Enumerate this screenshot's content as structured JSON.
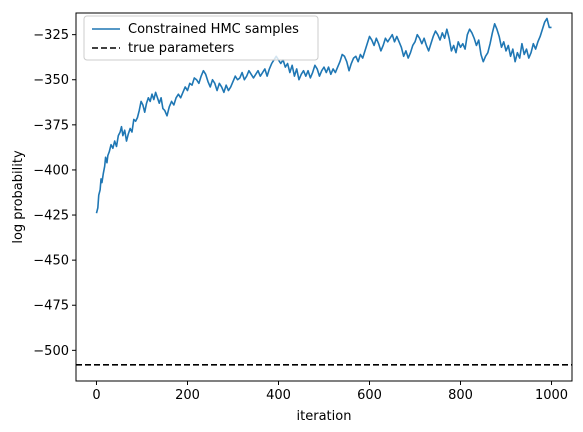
{
  "chart_data": {
    "type": "line",
    "xlabel": "iteration",
    "ylabel": "log probability",
    "xlim": [
      -45,
      1045
    ],
    "ylim": [
      -517,
      -313
    ],
    "x_ticks": [
      0,
      200,
      400,
      600,
      800,
      1000
    ],
    "y_ticks": [
      -500,
      -475,
      -450,
      -425,
      -400,
      -375,
      -350,
      -325
    ],
    "legend_position": "upper-left",
    "grid": false,
    "series": [
      {
        "name": "Constrained HMC samples",
        "style": "solid",
        "color": "#1f77b4",
        "points": [
          [
            0,
            -424
          ],
          [
            3,
            -421
          ],
          [
            5,
            -414
          ],
          [
            8,
            -411
          ],
          [
            10,
            -405
          ],
          [
            12,
            -407
          ],
          [
            15,
            -402
          ],
          [
            18,
            -398
          ],
          [
            20,
            -393
          ],
          [
            23,
            -396
          ],
          [
            25,
            -392
          ],
          [
            28,
            -390
          ],
          [
            32,
            -386
          ],
          [
            36,
            -388
          ],
          [
            40,
            -384
          ],
          [
            44,
            -387
          ],
          [
            48,
            -381
          ],
          [
            52,
            -379
          ],
          [
            55,
            -376
          ],
          [
            58,
            -381
          ],
          [
            62,
            -378
          ],
          [
            66,
            -384
          ],
          [
            70,
            -380
          ],
          [
            74,
            -377
          ],
          [
            78,
            -379
          ],
          [
            82,
            -372
          ],
          [
            86,
            -373
          ],
          [
            90,
            -371
          ],
          [
            94,
            -367
          ],
          [
            98,
            -362
          ],
          [
            102,
            -364
          ],
          [
            106,
            -368
          ],
          [
            110,
            -363
          ],
          [
            114,
            -360
          ],
          [
            118,
            -362
          ],
          [
            122,
            -358
          ],
          [
            126,
            -361
          ],
          [
            130,
            -357
          ],
          [
            134,
            -360
          ],
          [
            138,
            -363
          ],
          [
            142,
            -360
          ],
          [
            146,
            -366
          ],
          [
            150,
            -367
          ],
          [
            155,
            -370
          ],
          [
            160,
            -365
          ],
          [
            165,
            -362
          ],
          [
            170,
            -364
          ],
          [
            175,
            -360
          ],
          [
            180,
            -358
          ],
          [
            185,
            -360
          ],
          [
            190,
            -357
          ],
          [
            195,
            -354
          ],
          [
            200,
            -356
          ],
          [
            205,
            -352
          ],
          [
            210,
            -353
          ],
          [
            215,
            -349
          ],
          [
            220,
            -350
          ],
          [
            225,
            -352
          ],
          [
            230,
            -348
          ],
          [
            235,
            -345
          ],
          [
            240,
            -347
          ],
          [
            245,
            -351
          ],
          [
            250,
            -354
          ],
          [
            255,
            -350
          ],
          [
            260,
            -352
          ],
          [
            265,
            -356
          ],
          [
            270,
            -352
          ],
          [
            275,
            -354
          ],
          [
            280,
            -357
          ],
          [
            285,
            -353
          ],
          [
            290,
            -356
          ],
          [
            295,
            -354
          ],
          [
            300,
            -351
          ],
          [
            305,
            -348
          ],
          [
            310,
            -350
          ],
          [
            315,
            -349
          ],
          [
            320,
            -346
          ],
          [
            325,
            -350
          ],
          [
            330,
            -348
          ],
          [
            335,
            -345
          ],
          [
            340,
            -347
          ],
          [
            345,
            -349
          ],
          [
            350,
            -347
          ],
          [
            355,
            -345
          ],
          [
            360,
            -348
          ],
          [
            365,
            -346
          ],
          [
            370,
            -344
          ],
          [
            375,
            -348
          ],
          [
            380,
            -344
          ],
          [
            385,
            -341
          ],
          [
            390,
            -339
          ],
          [
            395,
            -337
          ],
          [
            400,
            -339
          ],
          [
            405,
            -341
          ],
          [
            410,
            -339
          ],
          [
            415,
            -343
          ],
          [
            420,
            -341
          ],
          [
            425,
            -346
          ],
          [
            430,
            -342
          ],
          [
            435,
            -348
          ],
          [
            440,
            -344
          ],
          [
            445,
            -350
          ],
          [
            450,
            -347
          ],
          [
            455,
            -345
          ],
          [
            460,
            -348
          ],
          [
            465,
            -345
          ],
          [
            470,
            -349
          ],
          [
            475,
            -346
          ],
          [
            480,
            -342
          ],
          [
            485,
            -344
          ],
          [
            490,
            -348
          ],
          [
            495,
            -345
          ],
          [
            500,
            -343
          ],
          [
            505,
            -346
          ],
          [
            510,
            -343
          ],
          [
            515,
            -347
          ],
          [
            520,
            -344
          ],
          [
            525,
            -346
          ],
          [
            530,
            -343
          ],
          [
            535,
            -340
          ],
          [
            540,
            -336
          ],
          [
            545,
            -337
          ],
          [
            550,
            -340
          ],
          [
            555,
            -345
          ],
          [
            560,
            -341
          ],
          [
            565,
            -338
          ],
          [
            570,
            -337
          ],
          [
            575,
            -340
          ],
          [
            580,
            -336
          ],
          [
            585,
            -338
          ],
          [
            590,
            -334
          ],
          [
            595,
            -330
          ],
          [
            600,
            -326
          ],
          [
            605,
            -328
          ],
          [
            610,
            -331
          ],
          [
            615,
            -327
          ],
          [
            620,
            -330
          ],
          [
            625,
            -334
          ],
          [
            630,
            -331
          ],
          [
            635,
            -327
          ],
          [
            640,
            -329
          ],
          [
            645,
            -327
          ],
          [
            650,
            -325
          ],
          [
            655,
            -329
          ],
          [
            660,
            -326
          ],
          [
            665,
            -329
          ],
          [
            670,
            -332
          ],
          [
            675,
            -337
          ],
          [
            680,
            -334
          ],
          [
            685,
            -338
          ],
          [
            690,
            -335
          ],
          [
            695,
            -331
          ],
          [
            700,
            -329
          ],
          [
            705,
            -325
          ],
          [
            710,
            -327
          ],
          [
            715,
            -330
          ],
          [
            720,
            -327
          ],
          [
            725,
            -331
          ],
          [
            730,
            -334
          ],
          [
            735,
            -330
          ],
          [
            740,
            -326
          ],
          [
            745,
            -323
          ],
          [
            750,
            -325
          ],
          [
            755,
            -328
          ],
          [
            760,
            -324
          ],
          [
            765,
            -327
          ],
          [
            770,
            -322
          ],
          [
            775,
            -327
          ],
          [
            780,
            -334
          ],
          [
            785,
            -331
          ],
          [
            790,
            -335
          ],
          [
            795,
            -329
          ],
          [
            800,
            -332
          ],
          [
            805,
            -330
          ],
          [
            810,
            -333
          ],
          [
            815,
            -325
          ],
          [
            820,
            -322
          ],
          [
            825,
            -324
          ],
          [
            830,
            -327
          ],
          [
            835,
            -331
          ],
          [
            840,
            -328
          ],
          [
            845,
            -336
          ],
          [
            850,
            -340
          ],
          [
            855,
            -337
          ],
          [
            860,
            -335
          ],
          [
            865,
            -330
          ],
          [
            870,
            -324
          ],
          [
            875,
            -319
          ],
          [
            880,
            -322
          ],
          [
            885,
            -326
          ],
          [
            890,
            -332
          ],
          [
            895,
            -329
          ],
          [
            900,
            -334
          ],
          [
            905,
            -331
          ],
          [
            910,
            -337
          ],
          [
            915,
            -333
          ],
          [
            920,
            -340
          ],
          [
            925,
            -335
          ],
          [
            930,
            -338
          ],
          [
            935,
            -330
          ],
          [
            940,
            -336
          ],
          [
            945,
            -333
          ],
          [
            950,
            -338
          ],
          [
            955,
            -335
          ],
          [
            960,
            -330
          ],
          [
            965,
            -333
          ],
          [
            970,
            -329
          ],
          [
            975,
            -326
          ],
          [
            980,
            -322
          ],
          [
            985,
            -318
          ],
          [
            990,
            -316
          ],
          [
            995,
            -321
          ],
          [
            1000,
            -321
          ]
        ]
      },
      {
        "name": "true parameters",
        "style": "dashed",
        "color": "#000000",
        "hline": -508
      }
    ]
  }
}
